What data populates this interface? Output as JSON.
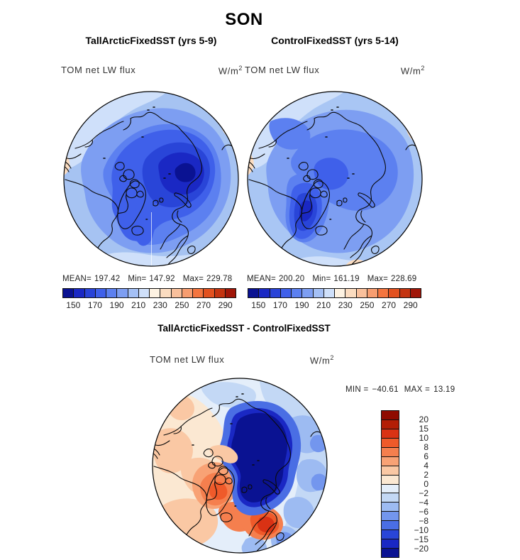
{
  "figure": {
    "title": "SON"
  },
  "panels": [
    {
      "title": "TallArcticFixedSST (yrs 5-9)",
      "field_label": "TOM net LW flux",
      "units_base": "W/m",
      "units_sup": "2",
      "stats": {
        "mean_label": "MEAN=",
        "mean": "197.42",
        "min_label": "Min=",
        "min": "147.92",
        "max_label": "Max=",
        "max": "229.78"
      }
    },
    {
      "title": "ControlFixedSST (yrs 5-14)",
      "field_label": "TOM net LW flux",
      "units_base": "W/m",
      "units_sup": "2",
      "stats": {
        "mean_label": "MEAN=",
        "mean": "200.20",
        "min_label": "Min=",
        "min": "161.19",
        "max_label": "Max=",
        "max": "228.69"
      }
    }
  ],
  "difference_panel": {
    "title": "TallArcticFixedSST - ControlFixedSST",
    "field_label": "TOM net LW flux",
    "units_base": "W/m",
    "units_sup": "2",
    "stats": {
      "min_label": "MIN =",
      "min": "−40.61",
      "max_label": "MAX =",
      "max": "13.19"
    }
  },
  "colorbars": {
    "absolute": {
      "orientation": "horizontal",
      "colors": [
        "#0a1292",
        "#1a28c4",
        "#2943d8",
        "#3f60ea",
        "#5c80f0",
        "#7d9ef2",
        "#a4c0f5",
        "#cfe0fa",
        "#fdf2e2",
        "#fbdcc0",
        "#f9c09c",
        "#f79d70",
        "#f4753f",
        "#e2511f",
        "#c43410",
        "#a01608"
      ],
      "ticks": [
        {
          "label": "150",
          "boundary": 1
        },
        {
          "label": "170",
          "boundary": 3
        },
        {
          "label": "190",
          "boundary": 5
        },
        {
          "label": "210",
          "boundary": 7
        },
        {
          "label": "230",
          "boundary": 9
        },
        {
          "label": "250",
          "boundary": 11
        },
        {
          "label": "270",
          "boundary": 13
        },
        {
          "label": "290",
          "boundary": 15
        }
      ]
    },
    "difference": {
      "orientation": "vertical",
      "colors": [
        "#8f0b00",
        "#b31e06",
        "#d93214",
        "#ef5a2a",
        "#f57f4e",
        "#f8a275",
        "#fac8a4",
        "#fbe8d2",
        "#e4eefa",
        "#c3d8f5",
        "#9dbbf2",
        "#7396ee",
        "#4a6ee4",
        "#2945d8",
        "#1a28c4",
        "#0a1292"
      ],
      "ticks": [
        {
          "label": "20",
          "boundary": 1
        },
        {
          "label": "15",
          "boundary": 2
        },
        {
          "label": "10",
          "boundary": 3
        },
        {
          "label": "8",
          "boundary": 4
        },
        {
          "label": "6",
          "boundary": 5
        },
        {
          "label": "4",
          "boundary": 6
        },
        {
          "label": "2",
          "boundary": 7
        },
        {
          "label": "0",
          "boundary": 8
        },
        {
          "label": "−2",
          "boundary": 9
        },
        {
          "label": "−4",
          "boundary": 10
        },
        {
          "label": "−6",
          "boundary": 11
        },
        {
          "label": "−8",
          "boundary": 12
        },
        {
          "label": "−10",
          "boundary": 13
        },
        {
          "label": "−15",
          "boundary": 14
        },
        {
          "label": "−20",
          "boundary": 15
        }
      ]
    }
  },
  "chart_data": [
    {
      "type": "heatmap",
      "subtype": "north-polar-stereographic-filled-contour-map",
      "panel": "top-left",
      "season": "SON",
      "title": "TallArcticFixedSST (yrs 5-9)",
      "variable": "TOM net LW flux",
      "units": "W/m2",
      "stats": {
        "mean": 197.42,
        "min": 147.92,
        "max": 229.78
      },
      "contour_levels": [
        150,
        160,
        170,
        180,
        190,
        200,
        210,
        220,
        230,
        240,
        250,
        260,
        270,
        280,
        290
      ],
      "colorbar_tick_labels": [
        150,
        170,
        190,
        210,
        230,
        250,
        270,
        290
      ],
      "legend_position": "below",
      "description": "Entire Arctic dome in blues (~150-210 W/m2); darkest minimum (navy) over Arctic Ocean north of Siberia, secondary dark area over Canadian Arctic; light blue rim with small peach (>210) patches at the mid-latitude edge."
    },
    {
      "type": "heatmap",
      "subtype": "north-polar-stereographic-filled-contour-map",
      "panel": "top-right",
      "season": "SON",
      "title": "ControlFixedSST (yrs 5-14)",
      "variable": "TOM net LW flux",
      "units": "W/m2",
      "stats": {
        "mean": 200.2,
        "min": 161.19,
        "max": 228.69
      },
      "contour_levels": [
        150,
        160,
        170,
        180,
        190,
        200,
        210,
        220,
        230,
        240,
        250,
        260,
        270,
        280,
        290
      ],
      "colorbar_tick_labels": [
        150,
        170,
        190,
        210,
        230,
        250,
        270,
        290
      ],
      "legend_position": "below",
      "description": "Similar but lighter blues overall; strongest minimum (darker blue) over Greenland; medium blue over central Arctic; peach patches at rim."
    },
    {
      "type": "heatmap",
      "subtype": "north-polar-stereographic-filled-contour-map",
      "panel": "bottom",
      "season": "SON",
      "title": "TallArcticFixedSST - ControlFixedSST",
      "variable": "TOM net LW flux",
      "units": "W/m2",
      "stats": {
        "min": -40.61,
        "max": 13.19
      },
      "contour_levels": [
        -20,
        -15,
        -10,
        -8,
        -6,
        -4,
        -2,
        0,
        2,
        4,
        6,
        8,
        10,
        15,
        20
      ],
      "legend_position": "right-vertical",
      "description": "Large strongly negative (navy, < -20) anomaly over the central Arctic Ocean; positive (orange/red, up to >10) anomalies over Baffin Bay / south Greenland and Scandinavia; weak positive over North America, weak negative over Siberia/Pacific side."
    }
  ]
}
